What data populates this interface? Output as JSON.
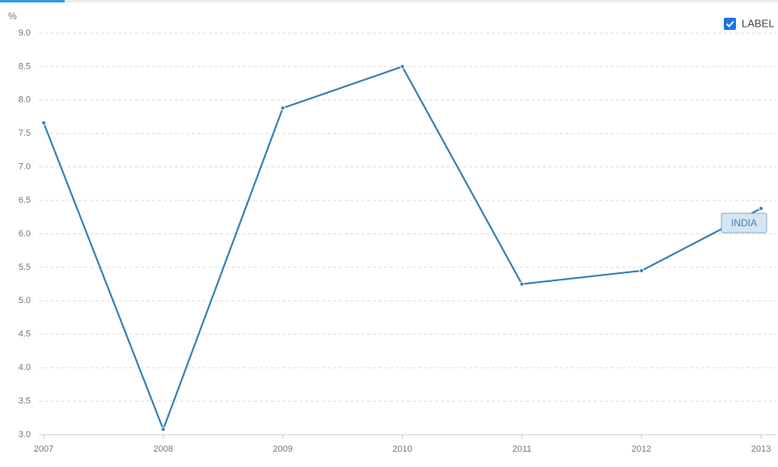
{
  "chart_data": {
    "type": "line",
    "y_unit": "%",
    "legend_toggle": "LABEL",
    "categories": [
      "2007",
      "2008",
      "2009",
      "2010",
      "2011",
      "2012",
      "2013"
    ],
    "series": [
      {
        "name": "INDIA",
        "color": "#3a7fb2",
        "values": [
          7.66,
          3.08,
          7.88,
          8.5,
          5.25,
          5.45,
          6.38
        ]
      }
    ],
    "ylim": [
      3.0,
      9.0
    ],
    "yticks": [
      {
        "value": 3,
        "label": "3.0"
      },
      3.5,
      {
        "value": 4,
        "label": "4.0"
      },
      4.5,
      {
        "value": 5,
        "label": "5.0"
      },
      5.5,
      {
        "value": 6,
        "label": "6.0"
      },
      6.5,
      {
        "value": 7,
        "label": "7.0"
      },
      7.5,
      {
        "value": 8,
        "label": "8.0"
      },
      8.5,
      {
        "value": 9,
        "label": "9.0"
      }
    ],
    "grid": true
  }
}
